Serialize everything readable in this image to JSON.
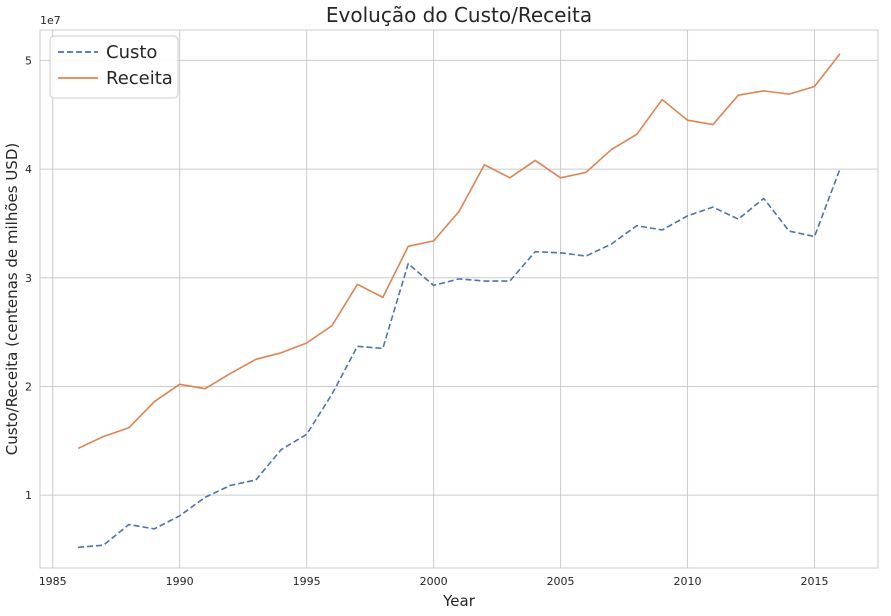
{
  "chart_data": {
    "type": "line",
    "title": "Evolução do Custo/Receita",
    "xlabel": "Year",
    "ylabel": "Custo/Receita (centenas de milhões USD)",
    "y_offset_label": "1e7",
    "xlim": [
      1984.5,
      2017.5
    ],
    "ylim": [
      3300000,
      52800000
    ],
    "x_ticks": [
      1985,
      1990,
      1995,
      2000,
      2005,
      2010,
      2015
    ],
    "y_ticks": [
      10000000,
      20000000,
      30000000,
      40000000,
      50000000
    ],
    "y_tick_labels": [
      "1",
      "2",
      "3",
      "4",
      "5"
    ],
    "grid": true,
    "legend_position": "top-left",
    "x": [
      1986,
      1987,
      1988,
      1989,
      1990,
      1991,
      1992,
      1993,
      1994,
      1995,
      1996,
      1997,
      1998,
      1999,
      2000,
      2001,
      2002,
      2003,
      2004,
      2005,
      2006,
      2007,
      2008,
      2009,
      2010,
      2011,
      2012,
      2013,
      2014,
      2015,
      2016
    ],
    "series": [
      {
        "name": "Custo",
        "style": "dashed",
        "color": "#4c72b0",
        "values": [
          5200000,
          5400000,
          7300000,
          6900000,
          8100000,
          9800000,
          10900000,
          11400000,
          14200000,
          15600000,
          19300000,
          23700000,
          23500000,
          31300000,
          29300000,
          29900000,
          29700000,
          29700000,
          32400000,
          32300000,
          32000000,
          33100000,
          34800000,
          34400000,
          35700000,
          36500000,
          35400000,
          37300000,
          34300000,
          33800000,
          40000000
        ]
      },
      {
        "name": "Receita",
        "style": "solid",
        "color": "#dd8452",
        "values": [
          14300000,
          15400000,
          16200000,
          18600000,
          20200000,
          19800000,
          21200000,
          22500000,
          23100000,
          24000000,
          25600000,
          29400000,
          28200000,
          32900000,
          33400000,
          36100000,
          40400000,
          39200000,
          40800000,
          39200000,
          39700000,
          41800000,
          43200000,
          46400000,
          44500000,
          44100000,
          46800000,
          47200000,
          46900000,
          47600000,
          50600000
        ]
      }
    ]
  }
}
